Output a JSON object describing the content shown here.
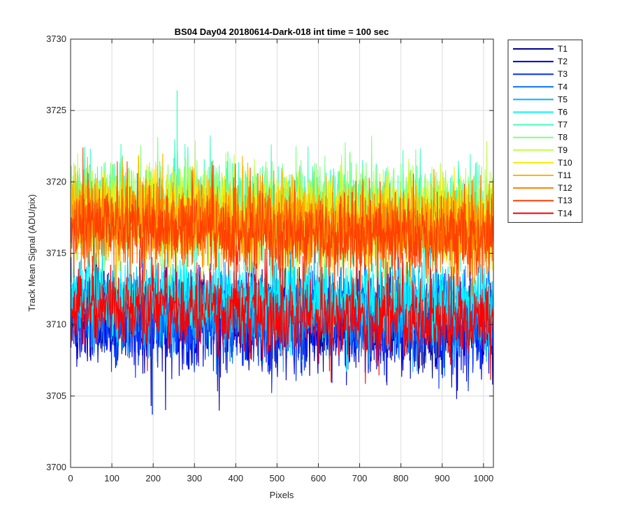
{
  "chart_data": {
    "type": "line",
    "title": "BS04 Day04 20180614-Dark-018 int time = 100 sec",
    "xlabel": "Pixels",
    "ylabel": "Track Mean Signal (ADU/pix)",
    "xlim": [
      0,
      1024
    ],
    "ylim": [
      3700,
      3730
    ],
    "xticks": [
      0,
      100,
      200,
      300,
      400,
      500,
      600,
      700,
      800,
      900,
      1000
    ],
    "yticks": [
      3700,
      3705,
      3710,
      3715,
      3720,
      3725,
      3730
    ],
    "grid": true,
    "legend_position": "outside-top-right",
    "series": [
      {
        "name": "T1",
        "color": "#00008f",
        "level_start": 3710.6,
        "level_end": 3710.0,
        "spread": 1.7
      },
      {
        "name": "T2",
        "color": "#0000d6",
        "level_start": 3710.4,
        "level_end": 3709.8,
        "spread": 1.8
      },
      {
        "name": "T3",
        "color": "#0030ff",
        "level_start": 3710.7,
        "level_end": 3710.1,
        "spread": 1.8
      },
      {
        "name": "T4",
        "color": "#0073ff",
        "level_start": 3711.0,
        "level_end": 3710.5,
        "spread": 1.6
      },
      {
        "name": "T5",
        "color": "#00b4ff",
        "level_start": 3711.6,
        "level_end": 3711.0,
        "spread": 1.6
      },
      {
        "name": "T6",
        "color": "#00f7ff",
        "level_start": 3712.0,
        "level_end": 3711.4,
        "spread": 1.6
      },
      {
        "name": "T7",
        "color": "#40ffbf",
        "level_start": 3718.6,
        "level_end": 3718.0,
        "spread": 1.8
      },
      {
        "name": "T8",
        "color": "#80ff80",
        "level_start": 3718.3,
        "level_end": 3717.8,
        "spread": 1.8
      },
      {
        "name": "T9",
        "color": "#bfff40",
        "level_start": 3718.1,
        "level_end": 3717.5,
        "spread": 1.8
      },
      {
        "name": "T10",
        "color": "#ffe800",
        "level_start": 3717.8,
        "level_end": 3717.2,
        "spread": 1.7
      },
      {
        "name": "T11",
        "color": "#ffb400",
        "level_start": 3717.6,
        "level_end": 3716.9,
        "spread": 1.7
      },
      {
        "name": "T12",
        "color": "#ff7f00",
        "level_start": 3717.3,
        "level_end": 3716.5,
        "spread": 1.7
      },
      {
        "name": "T13",
        "color": "#ff4000",
        "level_start": 3717.0,
        "level_end": 3715.8,
        "spread": 1.6
      },
      {
        "name": "T14",
        "color": "#ff0000",
        "level_start": 3711.4,
        "level_end": 3710.2,
        "spread": 1.6
      }
    ],
    "annotations": [
      {
        "name": "T3",
        "x": 198,
        "y": 3703.7
      },
      {
        "name": "T7",
        "x": 258,
        "y": 3726.4
      }
    ]
  }
}
